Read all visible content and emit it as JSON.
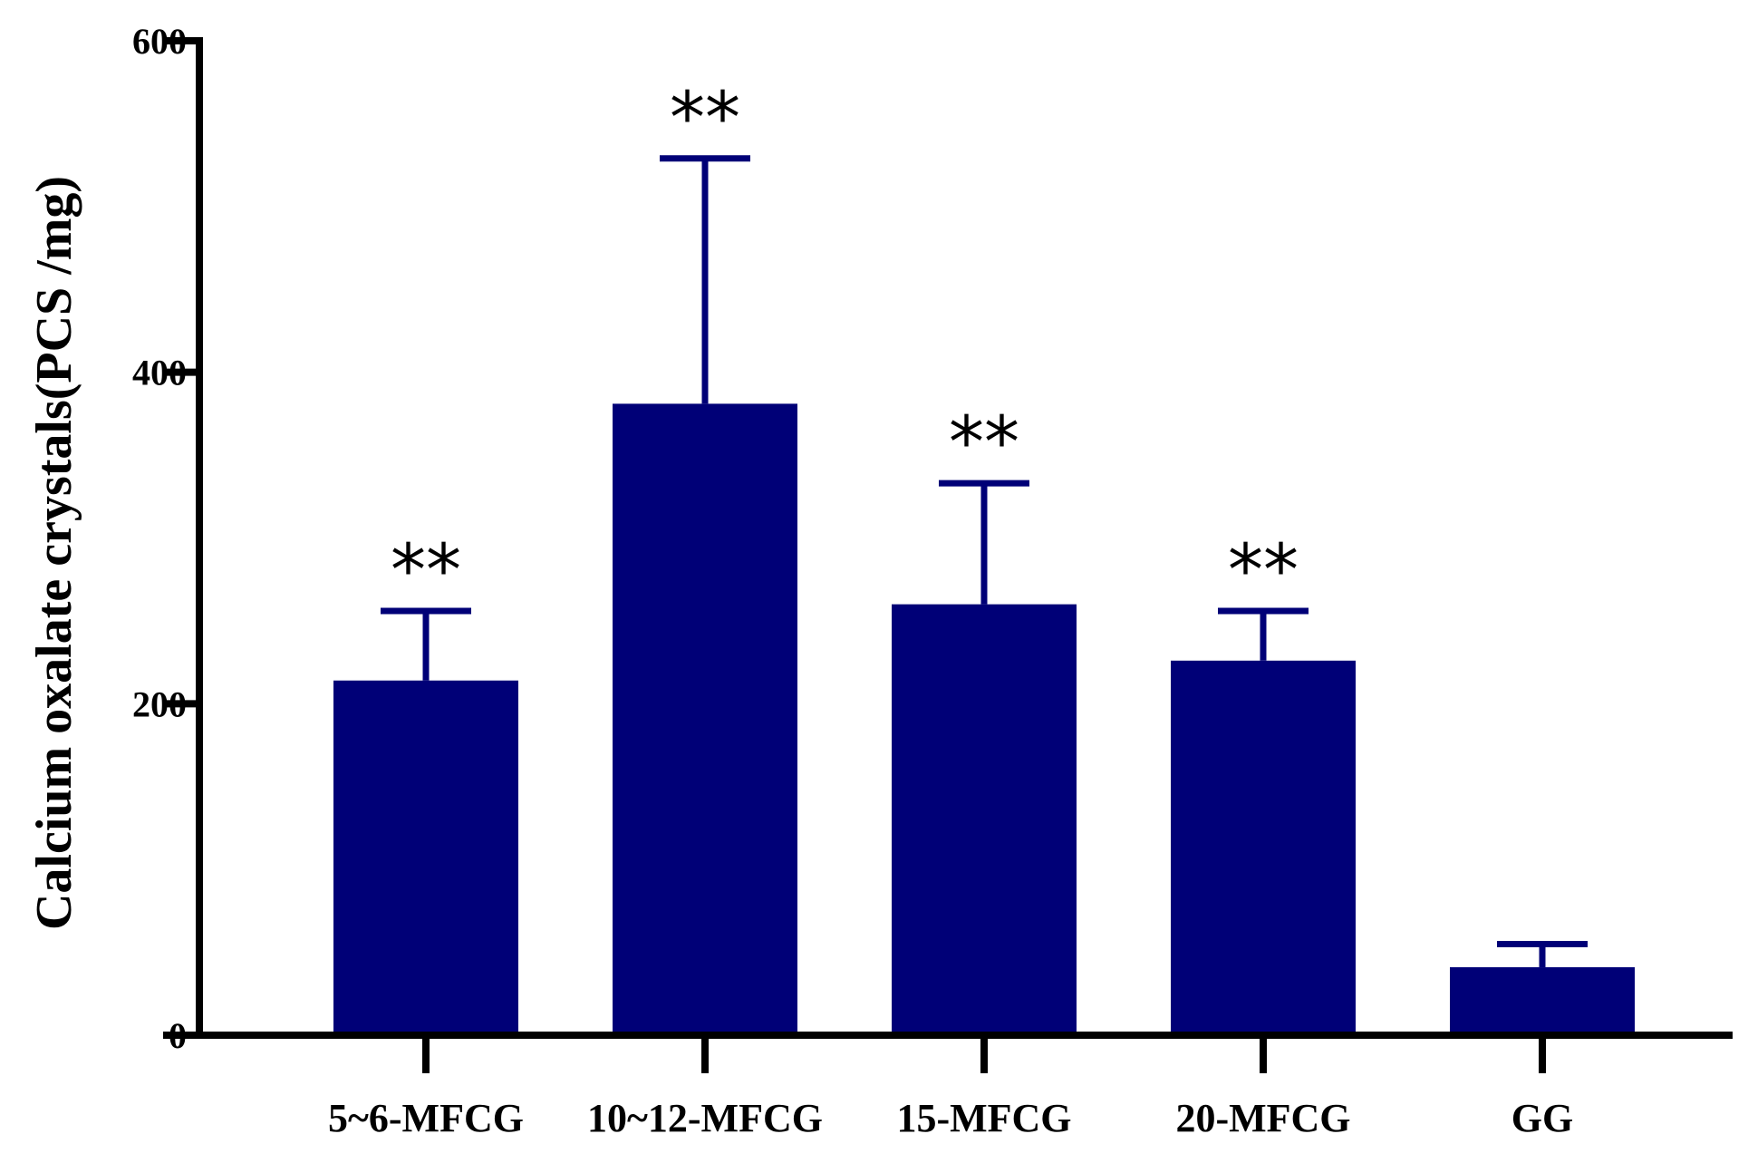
{
  "chart_data": {
    "type": "bar",
    "title": "",
    "xlabel": "",
    "ylabel": "Calcium oxalate crystals(PCS /mg)",
    "ylim": [
      0,
      600
    ],
    "yticks": [
      0,
      200,
      400,
      600
    ],
    "categories": [
      "5~6-MFCG",
      "10~12-MFCG",
      "15-MFCG",
      "20-MFCG",
      "GG"
    ],
    "values": [
      214,
      381,
      260,
      226,
      41
    ],
    "error_upper": [
      256,
      529,
      333,
      256,
      55
    ],
    "significance": [
      "**",
      "**",
      "**",
      "**",
      ""
    ],
    "colors": {
      "bar": "#000077",
      "error_bar": "#000077",
      "axis": "#000000"
    },
    "grid": false
  }
}
